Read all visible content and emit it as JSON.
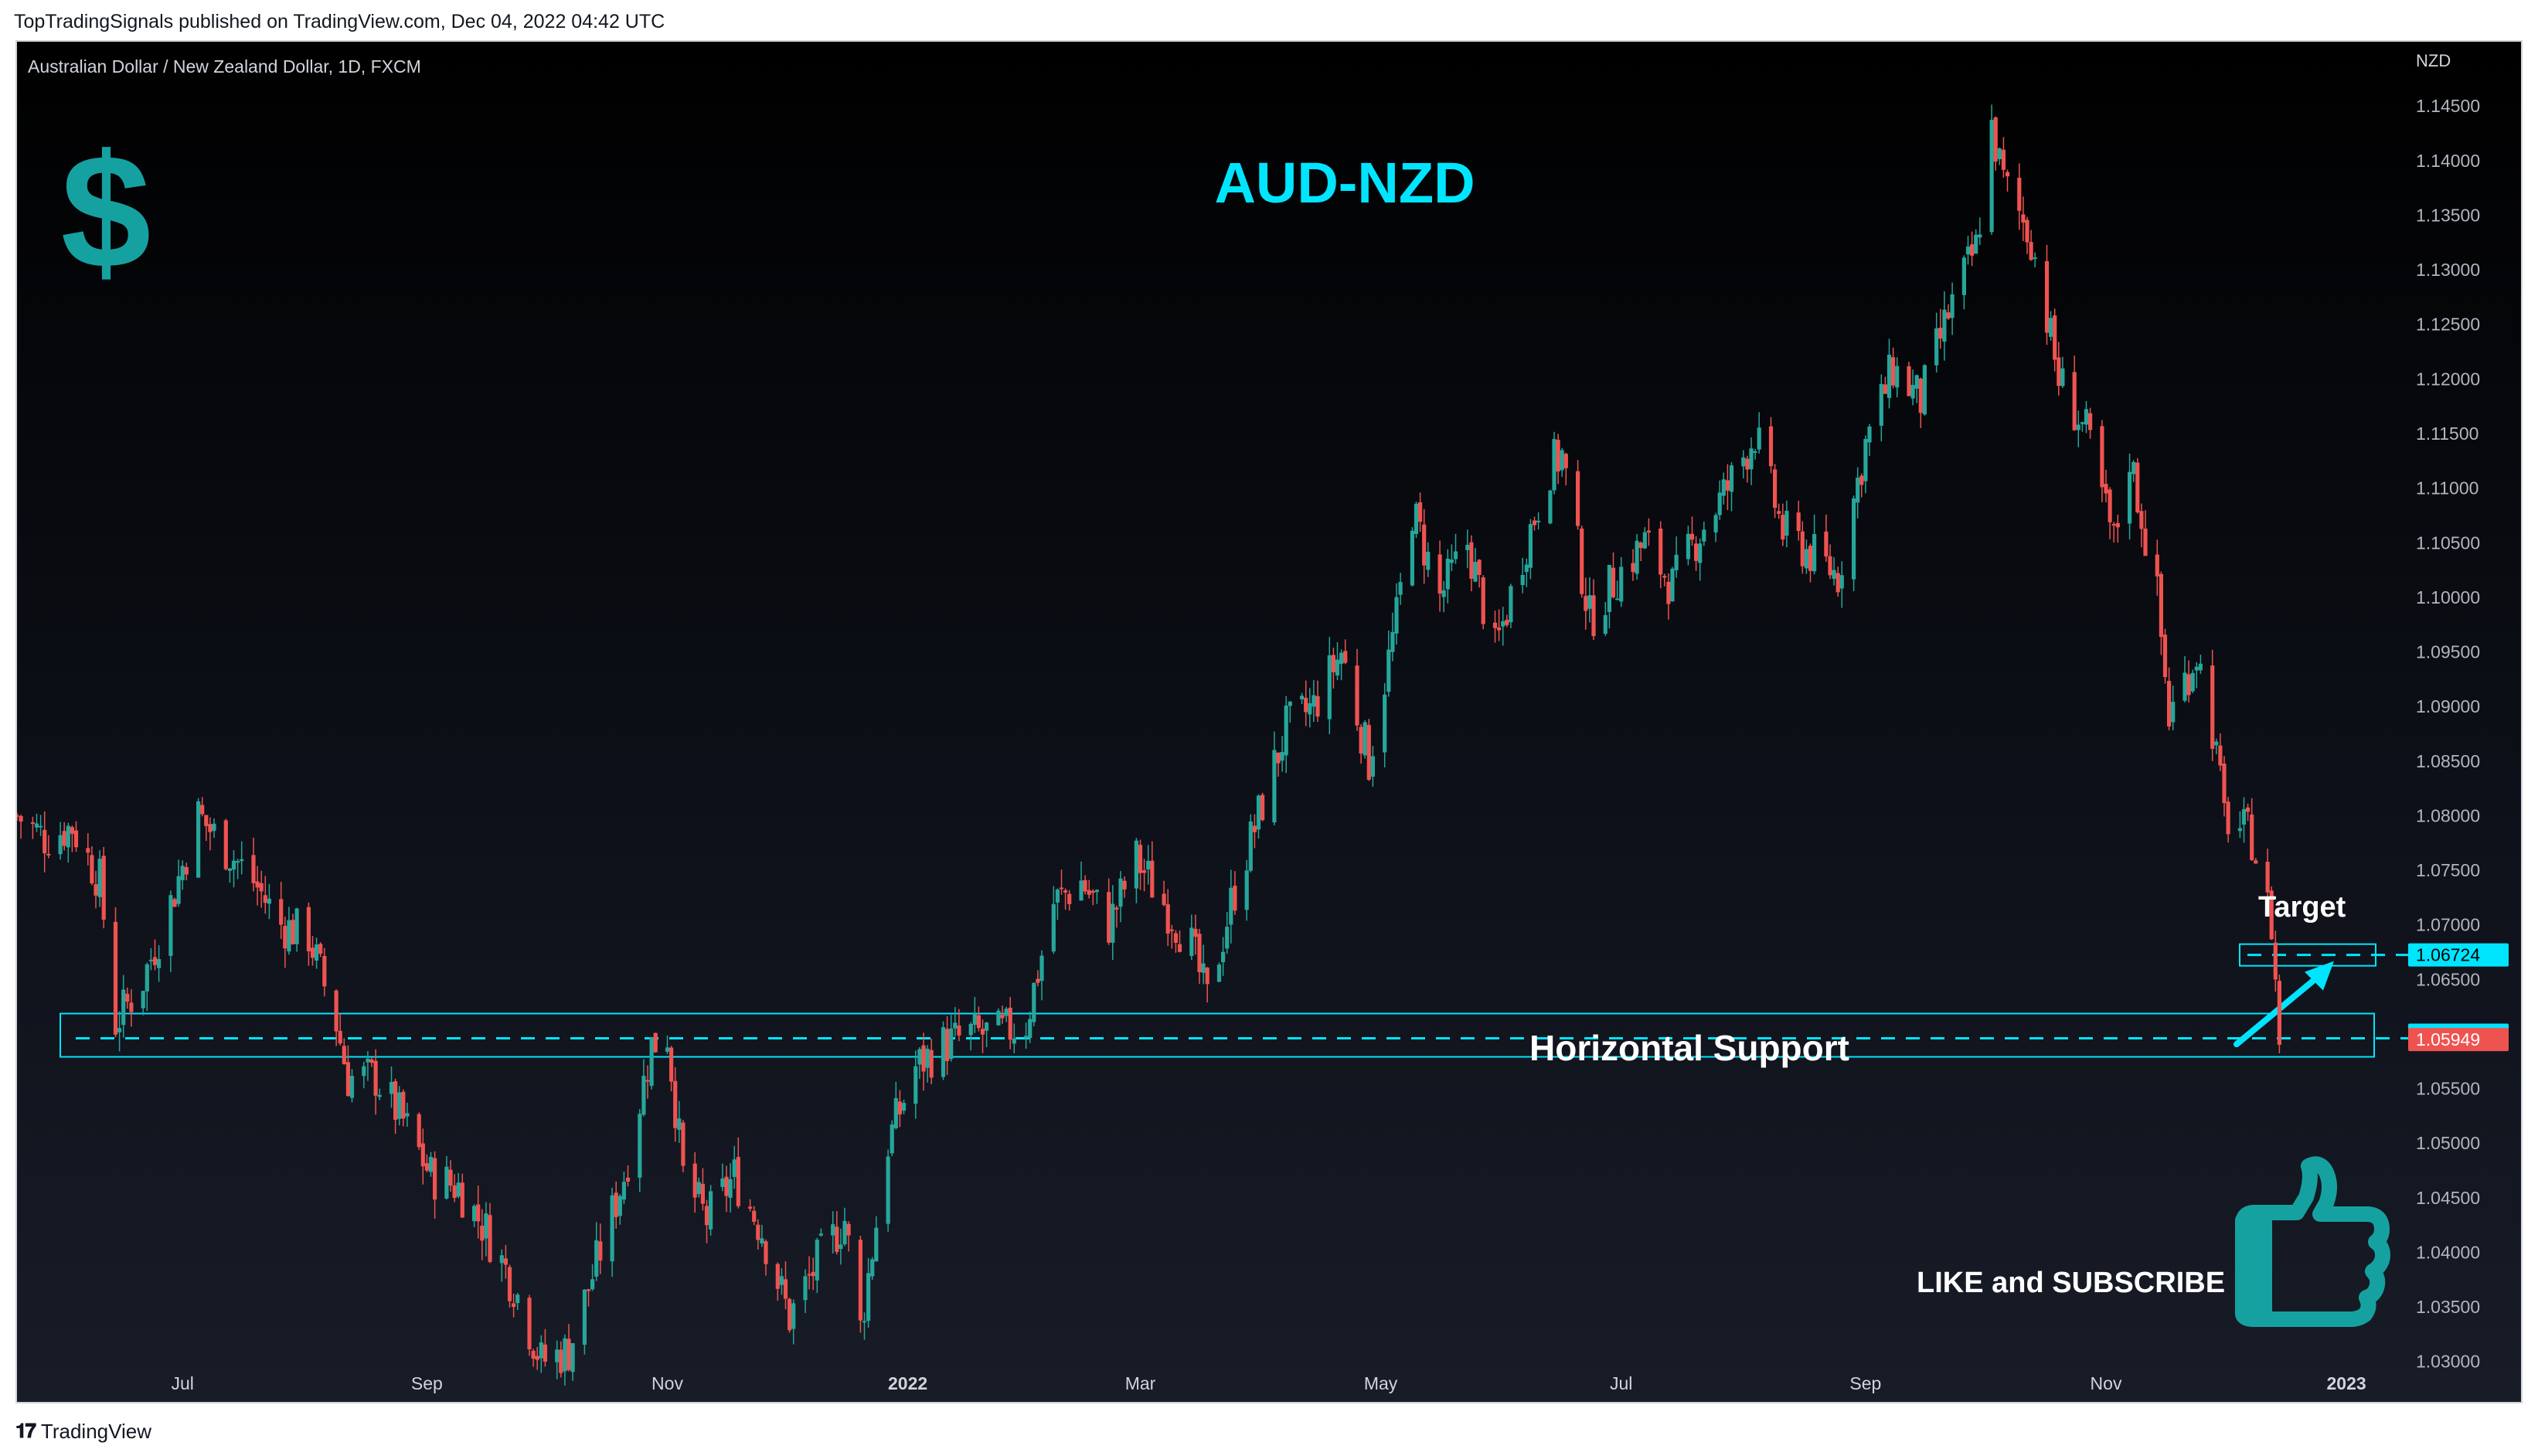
{
  "header": {
    "published_line": "TopTradingSignals published on TradingView.com, Dec 04, 2022 04:42 UTC"
  },
  "footer": {
    "brand": "TradingView"
  },
  "legend": {
    "symbol_line": "Australian Dollar / New Zealand Dollar, 1D, FXCM"
  },
  "overlay": {
    "headline": "AUD-NZD",
    "currency_symbol": "$",
    "target_label": "Target",
    "support_label": "Horizontal Support",
    "cta_label": "LIKE and SUBSCRIBE",
    "accent_color": "#00e5ff",
    "brand_teal": "#16a1a1",
    "up_color": "#26a69a",
    "down_color": "#ef5350"
  },
  "price_axis": {
    "unit": "NZD",
    "ticks": [
      "1.14500",
      "1.14000",
      "1.13500",
      "1.13000",
      "1.12500",
      "1.12000",
      "1.11500",
      "1.11000",
      "1.10500",
      "1.10000",
      "1.09500",
      "1.09000",
      "1.08500",
      "1.08000",
      "1.07500",
      "1.07000",
      "1.06500",
      "1.05500",
      "1.05000",
      "1.04500",
      "1.04000",
      "1.03500",
      "1.03000"
    ],
    "badges": [
      {
        "value": "1.06724",
        "color": "#00e5ff"
      },
      {
        "value": "1.05989",
        "color": "#00e5ff"
      },
      {
        "value": "1.05949",
        "color": "#ef5350"
      }
    ]
  },
  "time_axis": {
    "labels": [
      "Jul",
      "Sep",
      "Nov",
      "2022",
      "Mar",
      "May",
      "Jul",
      "Sep",
      "Nov",
      "2023"
    ]
  },
  "chart_data": {
    "type": "candlestick",
    "title": "Australian Dollar / New Zealand Dollar, 1D, FXCM",
    "ylabel": "NZD",
    "ylim": [
      1.028,
      1.1465
    ],
    "x_range": [
      "2021-05-20",
      "2023-01-10"
    ],
    "up_color": "#26a69a",
    "down_color": "#ef5350",
    "closes": [
      [
        "2021-05-20",
        1.08
      ],
      [
        "2021-05-27",
        1.078
      ],
      [
        "2021-06-03",
        1.079
      ],
      [
        "2021-06-10",
        1.074
      ],
      [
        "2021-06-14",
        1.061
      ],
      [
        "2021-06-21",
        1.065
      ],
      [
        "2021-06-28",
        1.072
      ],
      [
        "2021-07-05",
        1.08
      ],
      [
        "2021-07-12",
        1.077
      ],
      [
        "2021-07-19",
        1.074
      ],
      [
        "2021-07-26",
        1.07
      ],
      [
        "2021-08-02",
        1.069
      ],
      [
        "2021-08-09",
        1.061
      ],
      [
        "2021-08-12",
        1.056
      ],
      [
        "2021-08-19",
        1.056
      ],
      [
        "2021-08-26",
        1.052
      ],
      [
        "2021-09-02",
        1.047
      ],
      [
        "2021-09-09",
        1.046
      ],
      [
        "2021-09-16",
        1.042
      ],
      [
        "2021-09-23",
        1.037
      ],
      [
        "2021-09-30",
        1.03
      ],
      [
        "2021-10-07",
        1.031
      ],
      [
        "2021-10-14",
        1.039
      ],
      [
        "2021-10-21",
        1.047
      ],
      [
        "2021-10-28",
        1.059
      ],
      [
        "2021-11-01",
        1.06
      ],
      [
        "2021-11-05",
        1.047
      ],
      [
        "2021-11-11",
        1.043
      ],
      [
        "2021-11-18",
        1.047
      ],
      [
        "2021-11-25",
        1.042
      ],
      [
        "2021-12-02",
        1.034
      ],
      [
        "2021-12-09",
        1.039
      ],
      [
        "2021-12-16",
        1.043
      ],
      [
        "2021-12-20",
        1.033
      ],
      [
        "2021-12-27",
        1.05
      ],
      [
        "2022-01-03",
        1.057
      ],
      [
        "2022-01-10",
        1.059
      ],
      [
        "2022-01-17",
        1.06
      ],
      [
        "2022-01-24",
        1.06
      ],
      [
        "2022-01-31",
        1.061
      ],
      [
        "2022-02-07",
        1.072
      ],
      [
        "2022-02-14",
        1.074
      ],
      [
        "2022-02-21",
        1.07
      ],
      [
        "2022-02-28",
        1.076
      ],
      [
        "2022-03-07",
        1.072
      ],
      [
        "2022-03-14",
        1.068
      ],
      [
        "2022-03-18",
        1.063
      ],
      [
        "2022-03-24",
        1.072
      ],
      [
        "2022-03-31",
        1.08
      ],
      [
        "2022-04-07",
        1.088
      ],
      [
        "2022-04-14",
        1.09
      ],
      [
        "2022-04-21",
        1.095
      ],
      [
        "2022-04-28",
        1.085
      ],
      [
        "2022-05-05",
        1.098
      ],
      [
        "2022-05-09",
        1.108
      ],
      [
        "2022-05-16",
        1.1
      ],
      [
        "2022-05-23",
        1.105
      ],
      [
        "2022-05-30",
        1.095
      ],
      [
        "2022-06-06",
        1.104
      ],
      [
        "2022-06-13",
        1.112
      ],
      [
        "2022-06-16",
        1.113
      ],
      [
        "2022-06-23",
        1.098
      ],
      [
        "2022-06-30",
        1.102
      ],
      [
        "2022-07-07",
        1.105
      ],
      [
        "2022-07-14",
        1.101
      ],
      [
        "2022-07-21",
        1.106
      ],
      [
        "2022-07-28",
        1.11
      ],
      [
        "2022-08-04",
        1.115
      ],
      [
        "2022-08-11",
        1.106
      ],
      [
        "2022-08-18",
        1.104
      ],
      [
        "2022-08-25",
        1.102
      ],
      [
        "2022-09-01",
        1.114
      ],
      [
        "2022-09-08",
        1.121
      ],
      [
        "2022-09-15",
        1.118
      ],
      [
        "2022-09-22",
        1.126
      ],
      [
        "2022-09-29",
        1.132
      ],
      [
        "2022-10-03",
        1.143
      ],
      [
        "2022-10-06",
        1.138
      ],
      [
        "2022-10-13",
        1.133
      ],
      [
        "2022-10-20",
        1.12
      ],
      [
        "2022-10-27",
        1.115
      ],
      [
        "2022-11-03",
        1.105
      ],
      [
        "2022-11-07",
        1.113
      ],
      [
        "2022-11-14",
        1.1
      ],
      [
        "2022-11-17",
        1.089
      ],
      [
        "2022-11-24",
        1.095
      ],
      [
        "2022-11-28",
        1.088
      ],
      [
        "2022-12-01",
        1.08
      ],
      [
        "2022-12-08",
        1.078
      ],
      [
        "2022-12-13",
        1.07
      ],
      [
        "2022-12-15",
        1.0595
      ]
    ],
    "annotations": [
      {
        "label": "Horizontal Support",
        "level": 1.05989
      },
      {
        "label": "Target",
        "level": 1.06724
      },
      {
        "label": "Last price",
        "level": 1.05949
      }
    ]
  }
}
